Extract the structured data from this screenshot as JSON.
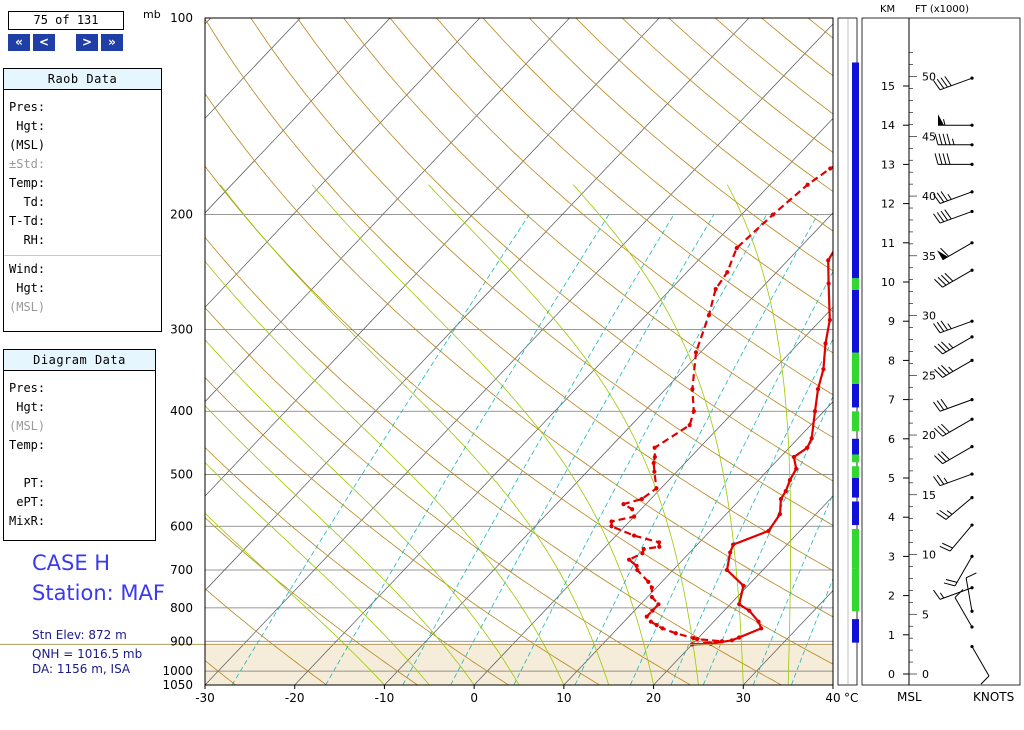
{
  "navigation": {
    "counter": "75 of 131",
    "buttons": [
      "«",
      "<",
      ">",
      "»"
    ],
    "mb_label": "mb"
  },
  "raob_panel": {
    "title": "Raob Data",
    "rows": [
      {
        "label": "Pres:",
        "muted": false
      },
      {
        "label": " Hgt:",
        "muted": false
      },
      {
        "label": "(MSL)",
        "muted": false
      },
      {
        "label": "±Std:",
        "muted": true
      },
      {
        "label": "Temp:",
        "muted": false
      },
      {
        "label": "  Td:",
        "muted": false
      },
      {
        "label": "T-Td:",
        "muted": false
      },
      {
        "label": "  RH:",
        "muted": false
      }
    ],
    "wind_rows": [
      {
        "label": "Wind:",
        "muted": false
      },
      {
        "label": " Hgt:",
        "muted": false
      },
      {
        "label": "(MSL)",
        "muted": true
      }
    ]
  },
  "diagram_panel": {
    "title": "Diagram Data",
    "rows": [
      {
        "label": "Pres:",
        "muted": false
      },
      {
        "label": " Hgt:",
        "muted": false
      },
      {
        "label": "(MSL)",
        "muted": true
      },
      {
        "label": "Temp:",
        "muted": false
      },
      {
        "label": "",
        "muted": false
      },
      {
        "label": "  PT:",
        "muted": false
      },
      {
        "label": " ePT:",
        "muted": false
      },
      {
        "label": "MixR:",
        "muted": false
      }
    ]
  },
  "case_info": {
    "case": "CASE H",
    "station": "Station: MAF",
    "stn_elev": "Stn Elev: 872 m",
    "qnh": "QNH = 1016.5 mb",
    "da": "DA: 1156 m, ISA"
  },
  "colors": {
    "temperature": "#e00000",
    "dewpoint": "#e00000",
    "isotherm": "#555555",
    "dry_adiabat": "#b8861b",
    "moist_adiabat": "#9cc800",
    "mixing_ratio": "#20b4b4",
    "nav_button": "#1f3fa7",
    "cloud_bar": "#1010d8",
    "dry_bar": "#30d830",
    "surface_shade": "#f5ecd9"
  },
  "chart_data": {
    "type": "line",
    "title": "",
    "xlabel": "°C",
    "ylabel": "mb",
    "xlim": [
      -30,
      40
    ],
    "ylim": [
      1050,
      100
    ],
    "y_scale": "log",
    "x_ticks": [
      -30,
      -20,
      -10,
      0,
      10,
      20,
      30,
      40
    ],
    "y_ticks": [
      100,
      200,
      300,
      400,
      500,
      600,
      700,
      800,
      900,
      1000,
      1050
    ],
    "surface_pressure": 910,
    "series": [
      {
        "id": "temperature",
        "style": "solid",
        "points": [
          [
            20,
            910
          ],
          [
            22,
            908
          ],
          [
            24,
            897
          ],
          [
            24.5,
            888
          ],
          [
            26,
            860
          ],
          [
            25,
            840
          ],
          [
            22.8,
            808
          ],
          [
            21,
            790
          ],
          [
            19.5,
            740
          ],
          [
            16,
            700
          ],
          [
            14.5,
            658
          ],
          [
            14,
            640
          ],
          [
            16.5,
            610
          ],
          [
            16,
            575
          ],
          [
            14.5,
            545
          ],
          [
            14.2,
            530
          ],
          [
            13.5,
            510
          ],
          [
            13,
            490
          ],
          [
            11.5,
            470
          ],
          [
            12,
            455
          ],
          [
            11.5,
            440
          ],
          [
            9,
            400
          ],
          [
            7,
            370
          ],
          [
            5.5,
            345
          ],
          [
            3,
            315
          ],
          [
            1,
            290
          ],
          [
            -3,
            255
          ],
          [
            -5.5,
            235
          ],
          [
            -6,
            225
          ],
          [
            -5.5,
            215
          ],
          [
            -7.5,
            200
          ],
          [
            -7.8,
            175
          ],
          [
            -5.5,
            160
          ],
          [
            -2,
            150
          ],
          [
            -2.2,
            140
          ],
          [
            -2.3,
            125
          ],
          [
            -2.2,
            120
          ]
        ]
      },
      {
        "id": "dewpoint",
        "style": "dashed",
        "points": [
          [
            20,
            910
          ],
          [
            23,
            900
          ],
          [
            20,
            893
          ],
          [
            19.5,
            890
          ],
          [
            17,
            875
          ],
          [
            15,
            860
          ],
          [
            14,
            850
          ],
          [
            13,
            840
          ],
          [
            12,
            825
          ],
          [
            12,
            808
          ],
          [
            12,
            790
          ],
          [
            10.5,
            770
          ],
          [
            9.5,
            745
          ],
          [
            8.5,
            730
          ],
          [
            6,
            700
          ],
          [
            5.5,
            690
          ],
          [
            4,
            675
          ],
          [
            4.8,
            660
          ],
          [
            4.5,
            650
          ],
          [
            6,
            645
          ],
          [
            5.5,
            635
          ],
          [
            2,
            620
          ],
          [
            -1.5,
            600
          ],
          [
            -2,
            590
          ],
          [
            0,
            580
          ],
          [
            -1,
            565
          ],
          [
            -2.5,
            555
          ],
          [
            -1,
            545
          ],
          [
            -0.5,
            525
          ],
          [
            -2.5,
            495
          ],
          [
            -3.5,
            480
          ],
          [
            -4,
            470
          ],
          [
            -5,
            455
          ],
          [
            -3.5,
            420
          ],
          [
            -4.5,
            400
          ],
          [
            -7,
            370
          ],
          [
            -10.5,
            325
          ],
          [
            -13,
            285
          ],
          [
            -15,
            260
          ],
          [
            -15.5,
            245
          ],
          [
            -17,
            225
          ],
          [
            -16.5,
            200
          ],
          [
            -15.8,
            180
          ],
          [
            -15,
            170
          ],
          [
            -13.5,
            160
          ],
          [
            -13,
            150
          ],
          [
            -12.3,
            135
          ],
          [
            -11.8,
            125
          ],
          [
            -11.5,
            120
          ]
        ]
      }
    ],
    "altitude_scale": {
      "km_label": "KM",
      "ft_label": "FT (x1000)",
      "msl_label": "MSL",
      "knots_label": "KNOTS",
      "km_ticks": [
        0,
        1,
        2,
        3,
        4,
        5,
        6,
        7,
        8,
        9,
        10,
        11,
        12,
        13,
        14,
        15
      ],
      "ft_ticks": [
        0,
        5,
        10,
        15,
        20,
        25,
        30,
        35,
        40,
        45,
        50
      ]
    },
    "wind_barbs": [
      {
        "km": 0.7,
        "dir": 150,
        "speed": 10
      },
      {
        "km": 1.2,
        "dir": 330,
        "speed": 10
      },
      {
        "km": 1.6,
        "dir": 350,
        "speed": 10
      },
      {
        "km": 2.2,
        "dir": 250,
        "speed": 15
      },
      {
        "km": 3.0,
        "dir": 210,
        "speed": 20
      },
      {
        "km": 3.8,
        "dir": 220,
        "speed": 20
      },
      {
        "km": 4.5,
        "dir": 230,
        "speed": 25
      },
      {
        "km": 5.1,
        "dir": 250,
        "speed": 25
      },
      {
        "km": 5.8,
        "dir": 240,
        "speed": 30
      },
      {
        "km": 6.5,
        "dir": 240,
        "speed": 30
      },
      {
        "km": 7.0,
        "dir": 250,
        "speed": 30
      },
      {
        "km": 8.0,
        "dir": 240,
        "speed": 35
      },
      {
        "km": 8.6,
        "dir": 240,
        "speed": 35
      },
      {
        "km": 9.0,
        "dir": 250,
        "speed": 35
      },
      {
        "km": 10.3,
        "dir": 240,
        "speed": 40
      },
      {
        "km": 11.0,
        "dir": 240,
        "speed": 60
      },
      {
        "km": 11.8,
        "dir": 250,
        "speed": 40
      },
      {
        "km": 12.3,
        "dir": 250,
        "speed": 35
      },
      {
        "km": 13.0,
        "dir": 270,
        "speed": 40
      },
      {
        "km": 13.5,
        "dir": 270,
        "speed": 45
      },
      {
        "km": 14.0,
        "dir": 270,
        "speed": 55
      },
      {
        "km": 15.2,
        "dir": 250,
        "speed": 40
      }
    ],
    "column_bars": [
      {
        "from_km": 0.8,
        "to_km": 1.4,
        "kind": "cloud"
      },
      {
        "from_km": 1.6,
        "to_km": 2.7,
        "kind": "dry"
      },
      {
        "from_km": 2.7,
        "to_km": 3.7,
        "kind": "dry"
      },
      {
        "from_km": 3.8,
        "to_km": 4.4,
        "kind": "cloud"
      },
      {
        "from_km": 4.5,
        "to_km": 5.0,
        "kind": "cloud"
      },
      {
        "from_km": 5.0,
        "to_km": 5.3,
        "kind": "dry"
      },
      {
        "from_km": 5.4,
        "to_km": 5.6,
        "kind": "dry"
      },
      {
        "from_km": 5.6,
        "to_km": 6.0,
        "kind": "cloud"
      },
      {
        "from_km": 6.2,
        "to_km": 6.7,
        "kind": "dry"
      },
      {
        "from_km": 6.8,
        "to_km": 7.4,
        "kind": "cloud"
      },
      {
        "from_km": 7.4,
        "to_km": 8.2,
        "kind": "dry"
      },
      {
        "from_km": 8.2,
        "to_km": 9.8,
        "kind": "cloud"
      },
      {
        "from_km": 9.8,
        "to_km": 10.1,
        "kind": "dry"
      },
      {
        "from_km": 10.1,
        "to_km": 15.6,
        "kind": "cloud"
      }
    ]
  }
}
